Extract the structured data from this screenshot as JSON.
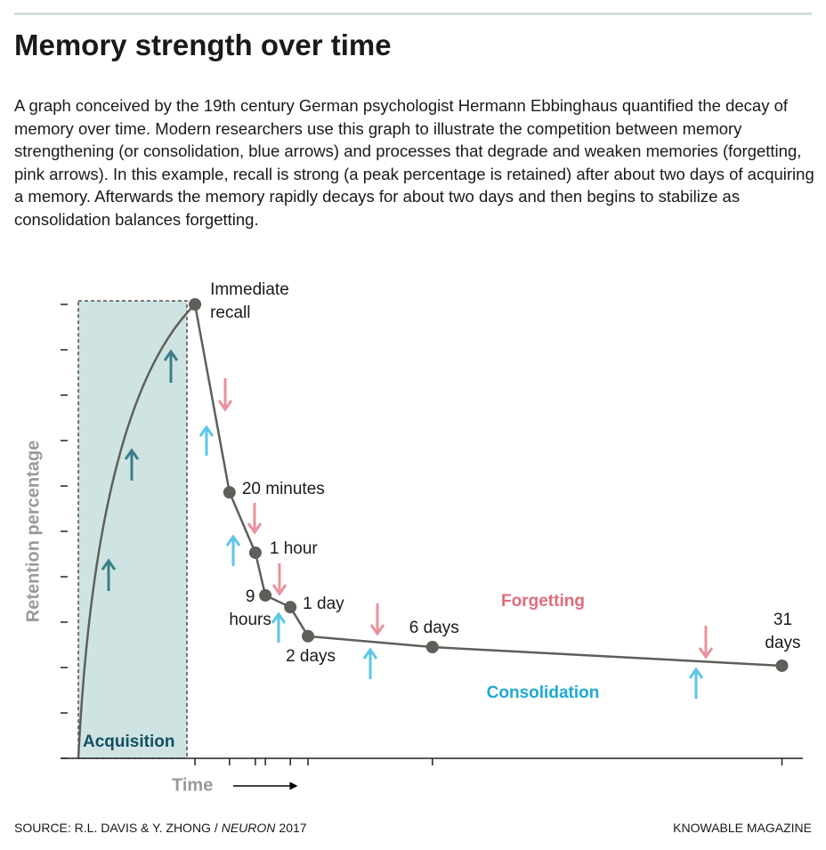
{
  "chart_data": {
    "type": "line",
    "title": "Memory strength over time",
    "description": "A graph conceived by the 19th century German psychologist Hermann Ebbinghaus quantified the decay of memory over time. Modern researchers use this graph to illustrate the competition between memory strengthening (or consolidation, blue arrows) and processes that degrade and weaken memories (forgetting, pink arrows). In this example, recall is strong (a peak percentage is retained) after about two days of acquiring a memory. Afterwards the memory rapidly decays for about two days and then begins to stabilize as consolidation balances forgetting.",
    "y_label": "Retention percentage",
    "x_label": "Time",
    "region_label": "Acquisition",
    "forgetting_label": "Forgetting",
    "consolidation_label": "Consolidation",
    "point_labels": [
      [
        "Immediate",
        "recall"
      ],
      [
        "20 minutes"
      ],
      [
        "1 hour"
      ],
      [
        "9",
        "hours"
      ],
      [
        "1 day"
      ],
      [
        "2 days"
      ],
      [
        "6 days"
      ],
      [
        "31",
        "days"
      ]
    ],
    "x": [
      2.57,
      3.33,
      3.9,
      4.12,
      4.67,
      5.06,
      7.8,
      15.5
    ],
    "values": [
      10,
      5.86,
      4.53,
      3.59,
      3.33,
      2.69,
      2.45,
      2.04
    ],
    "color": "#5f5f59",
    "xlim": [
      0,
      16
    ],
    "ylim": [
      0,
      10
    ],
    "yticks": [
      0,
      1,
      2,
      3,
      4,
      5,
      6,
      7,
      8,
      9,
      10
    ],
    "source": {
      "prefix": "SOURCE: R.L. DAVIS & Y. ZHONG /",
      "journal": "NEURON",
      "year": "2017"
    },
    "brand": "KNOWABLE MAGAZINE"
  }
}
